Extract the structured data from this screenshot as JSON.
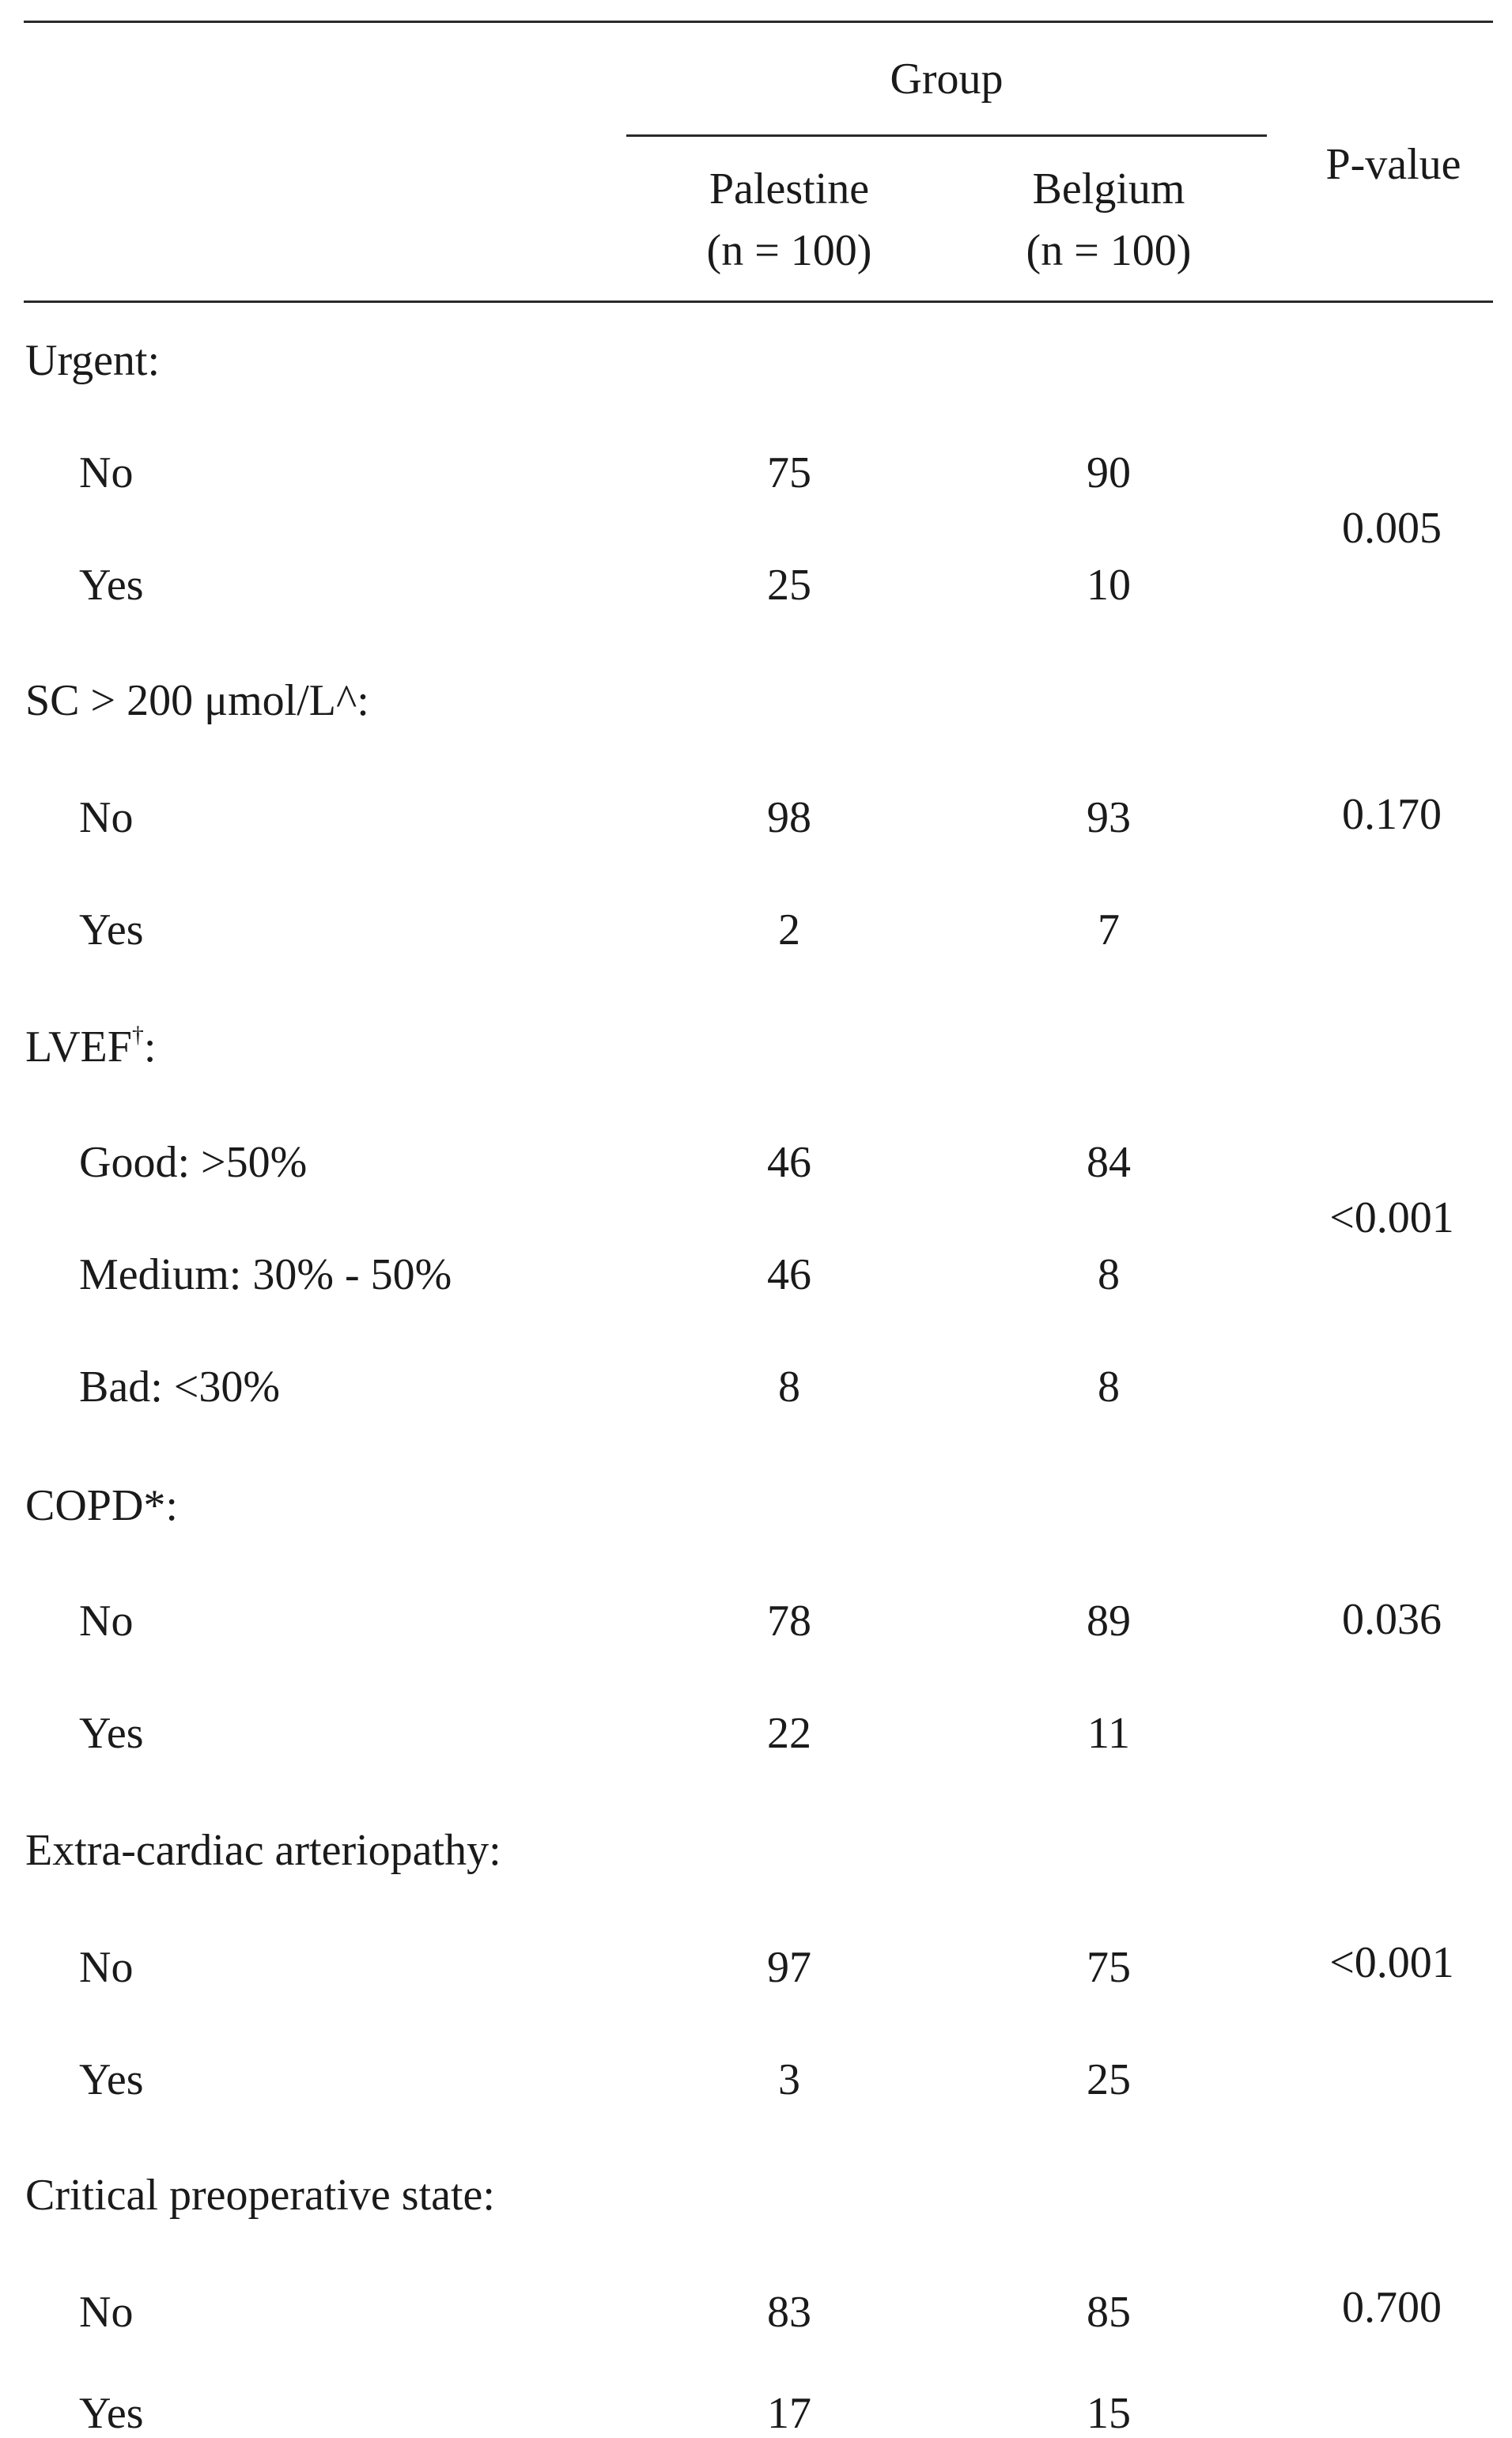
{
  "header": {
    "group_label": "Group",
    "col1_name": "Palestine",
    "col1_n": "(n = 100)",
    "col2_name": "Belgium",
    "col2_n": "(n = 100)",
    "pvalue_label": "P-value"
  },
  "sections": [
    {
      "label": "Urgent:",
      "pvalue": "0.005",
      "rows": [
        {
          "label": "No",
          "palestine": "75",
          "belgium": "90"
        },
        {
          "label": "Yes",
          "palestine": "25",
          "belgium": "10"
        }
      ]
    },
    {
      "label": "SC > 200 μmol/L^:",
      "pvalue": "0.170",
      "rows": [
        {
          "label": "No",
          "palestine": "98",
          "belgium": "93"
        },
        {
          "label": "Yes",
          "palestine": "2",
          "belgium": "7"
        }
      ]
    },
    {
      "label": "LVEF",
      "label_sup": "†",
      "label_suffix": ":",
      "pvalue": "<0.001",
      "rows": [
        {
          "label": "Good: >50%",
          "palestine": "46",
          "belgium": "84"
        },
        {
          "label": "Medium: 30% - 50%",
          "palestine": "46",
          "belgium": "8"
        },
        {
          "label": "Bad: <30%",
          "palestine": "8",
          "belgium": "8"
        }
      ]
    },
    {
      "label": "COPD*:",
      "pvalue": "0.036",
      "rows": [
        {
          "label": "No",
          "palestine": "78",
          "belgium": "89"
        },
        {
          "label": "Yes",
          "palestine": "22",
          "belgium": "11"
        }
      ]
    },
    {
      "label": "Extra-cardiac arteriopathy:",
      "pvalue": "<0.001",
      "rows": [
        {
          "label": "No",
          "palestine": "97",
          "belgium": "75"
        },
        {
          "label": "Yes",
          "palestine": "3",
          "belgium": "25"
        }
      ]
    },
    {
      "label": "Critical preoperative state:",
      "pvalue": "0.700",
      "rows": [
        {
          "label": "No",
          "palestine": "83",
          "belgium": "85"
        },
        {
          "label": "Yes",
          "palestine": "17",
          "belgium": "15"
        }
      ]
    }
  ]
}
